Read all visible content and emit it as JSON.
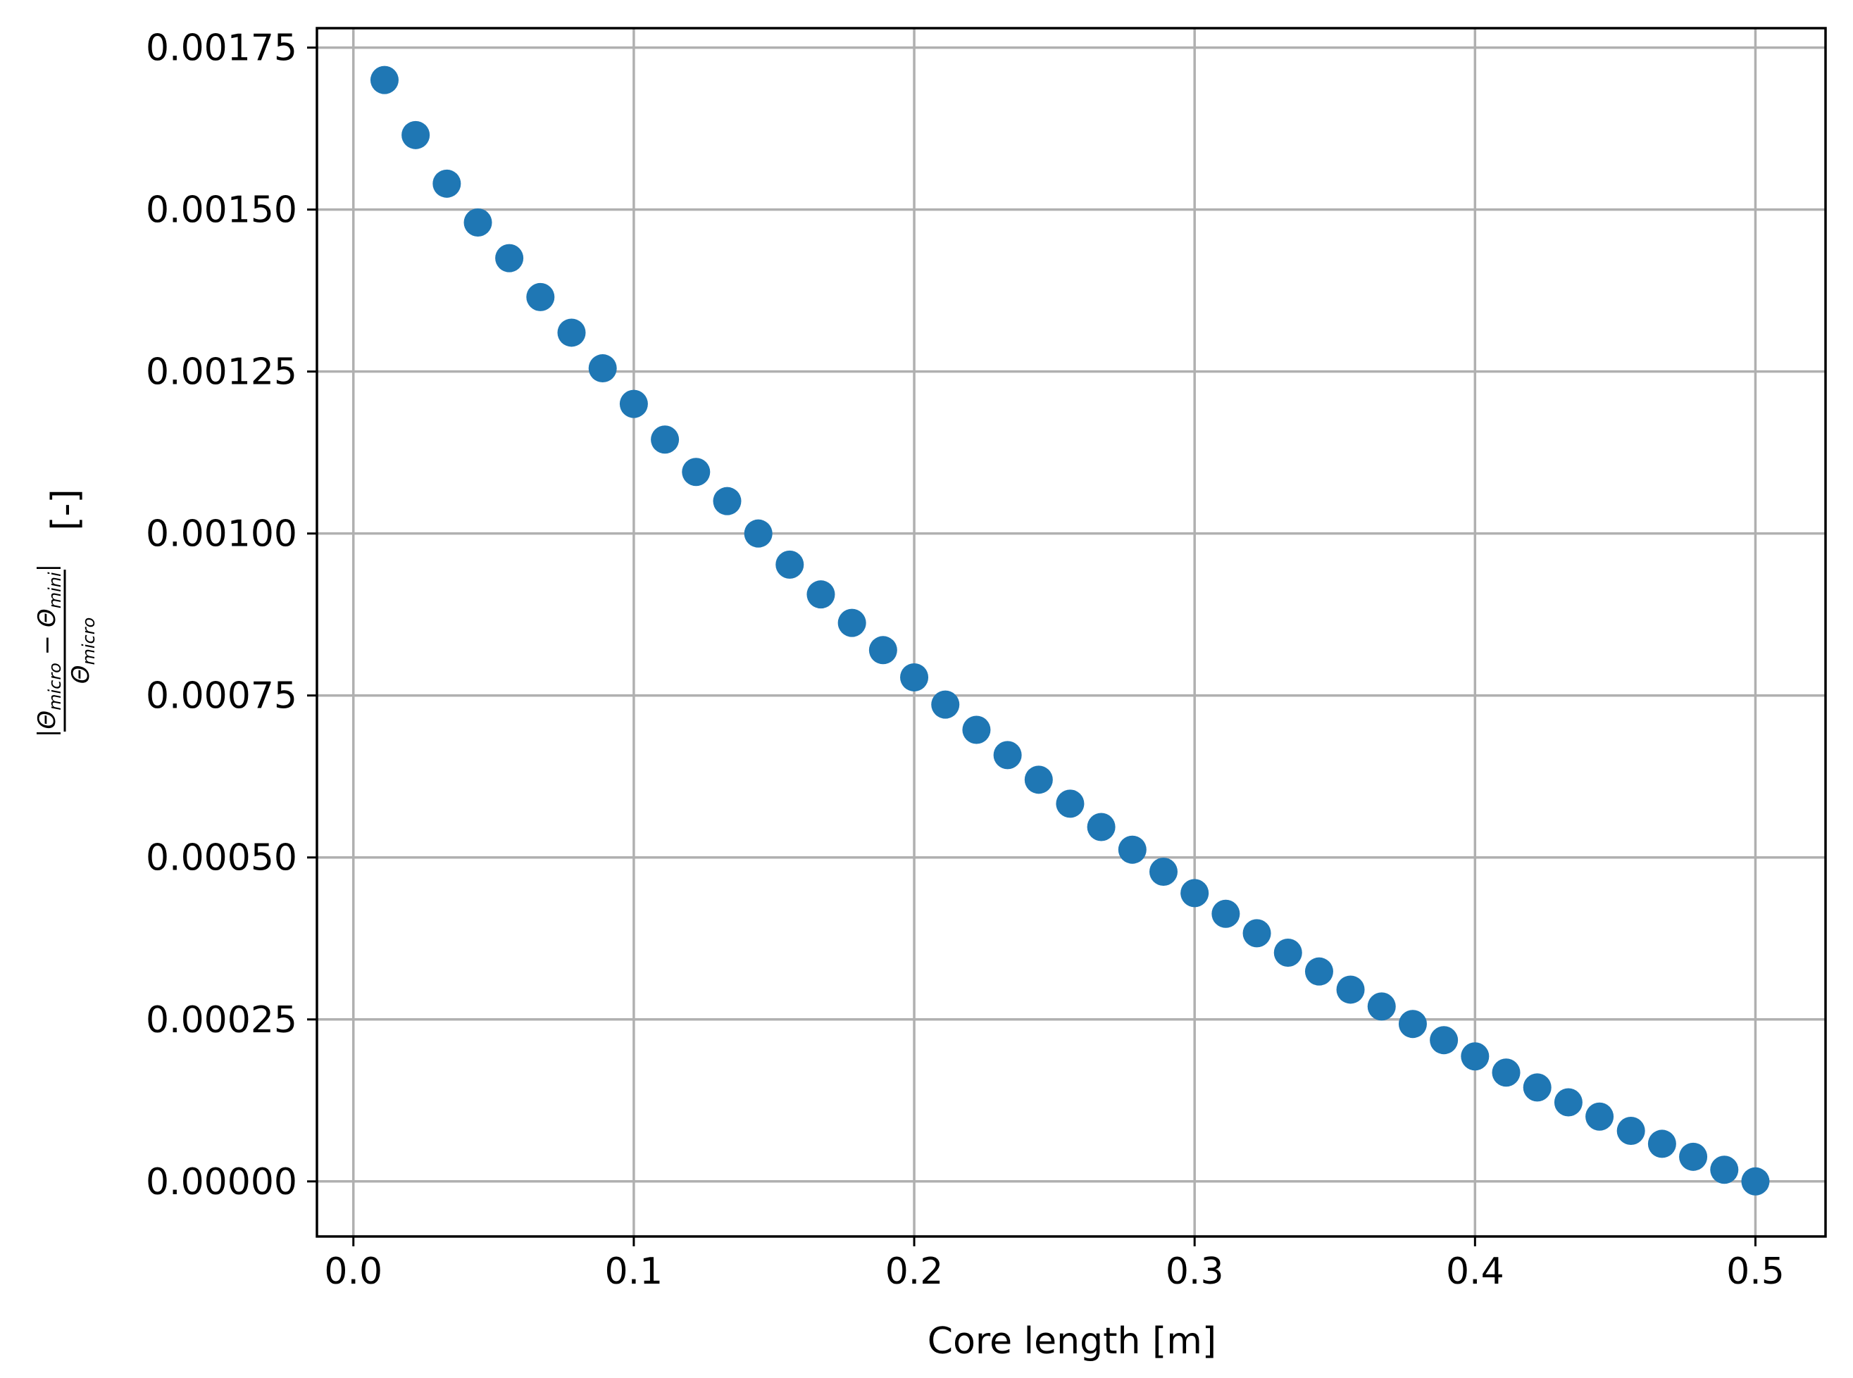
{
  "chart_data": {
    "type": "scatter",
    "title": "",
    "xlabel": "Core length [m]",
    "ylabel": {
      "numerator": "|Θmicro − Θmini|",
      "denominator": "Θmicro",
      "numerator_parts": {
        "a": "|Θ",
        "a_sub": "micro",
        "op": " − Θ",
        "b_sub": "mini",
        "close": "|"
      },
      "denominator_parts": {
        "a": "Θ",
        "a_sub": "micro"
      },
      "unit": "[-]"
    },
    "xlim": [
      -0.013,
      0.525
    ],
    "ylim": [
      -8.5e-05,
      0.00178
    ],
    "xticks": [
      0.0,
      0.1,
      0.2,
      0.3,
      0.4,
      0.5
    ],
    "xtick_labels": [
      "0.0",
      "0.1",
      "0.2",
      "0.3",
      "0.4",
      "0.5"
    ],
    "yticks": [
      0.0,
      0.00025,
      0.0005,
      0.00075,
      0.001,
      0.00125,
      0.0015,
      0.00175
    ],
    "ytick_labels": [
      "0.00000",
      "0.00025",
      "0.00050",
      "0.00075",
      "0.00100",
      "0.00125",
      "0.00150",
      "0.00175"
    ],
    "grid": true,
    "marker_color": "#1f77b4",
    "grid_color": "#b0b0b0",
    "series": [
      {
        "x": [
          0.0111,
          0.0222,
          0.0333,
          0.0444,
          0.0556,
          0.0667,
          0.0778,
          0.0889,
          0.1,
          0.1111,
          0.1222,
          0.1333,
          0.1444,
          0.1556,
          0.1667,
          0.1778,
          0.1889,
          0.2,
          0.2111,
          0.2222,
          0.2333,
          0.2444,
          0.2556,
          0.2667,
          0.2778,
          0.2889,
          0.3,
          0.3111,
          0.3222,
          0.3333,
          0.3444,
          0.3556,
          0.3667,
          0.3778,
          0.3889,
          0.4,
          0.4111,
          0.4222,
          0.4333,
          0.4444,
          0.4556,
          0.4667,
          0.4778,
          0.4889,
          0.5
        ],
        "y": [
          0.0017,
          0.001615,
          0.00154,
          0.00148,
          0.001425,
          0.001365,
          0.00131,
          0.001255,
          0.0012,
          0.001145,
          0.001095,
          0.00105,
          0.001,
          0.000952,
          0.000906,
          0.000862,
          0.00082,
          0.000778,
          0.000736,
          0.000697,
          0.000658,
          0.00062,
          0.000583,
          0.000547,
          0.000512,
          0.000478,
          0.000445,
          0.000413,
          0.000383,
          0.000353,
          0.000324,
          0.000296,
          0.00027,
          0.000243,
          0.000218,
          0.000193,
          0.000168,
          0.000145,
          0.000122,
          0.0001,
          7.8e-05,
          5.8e-05,
          3.8e-05,
          1.8e-05,
          0.0
        ]
      }
    ]
  }
}
